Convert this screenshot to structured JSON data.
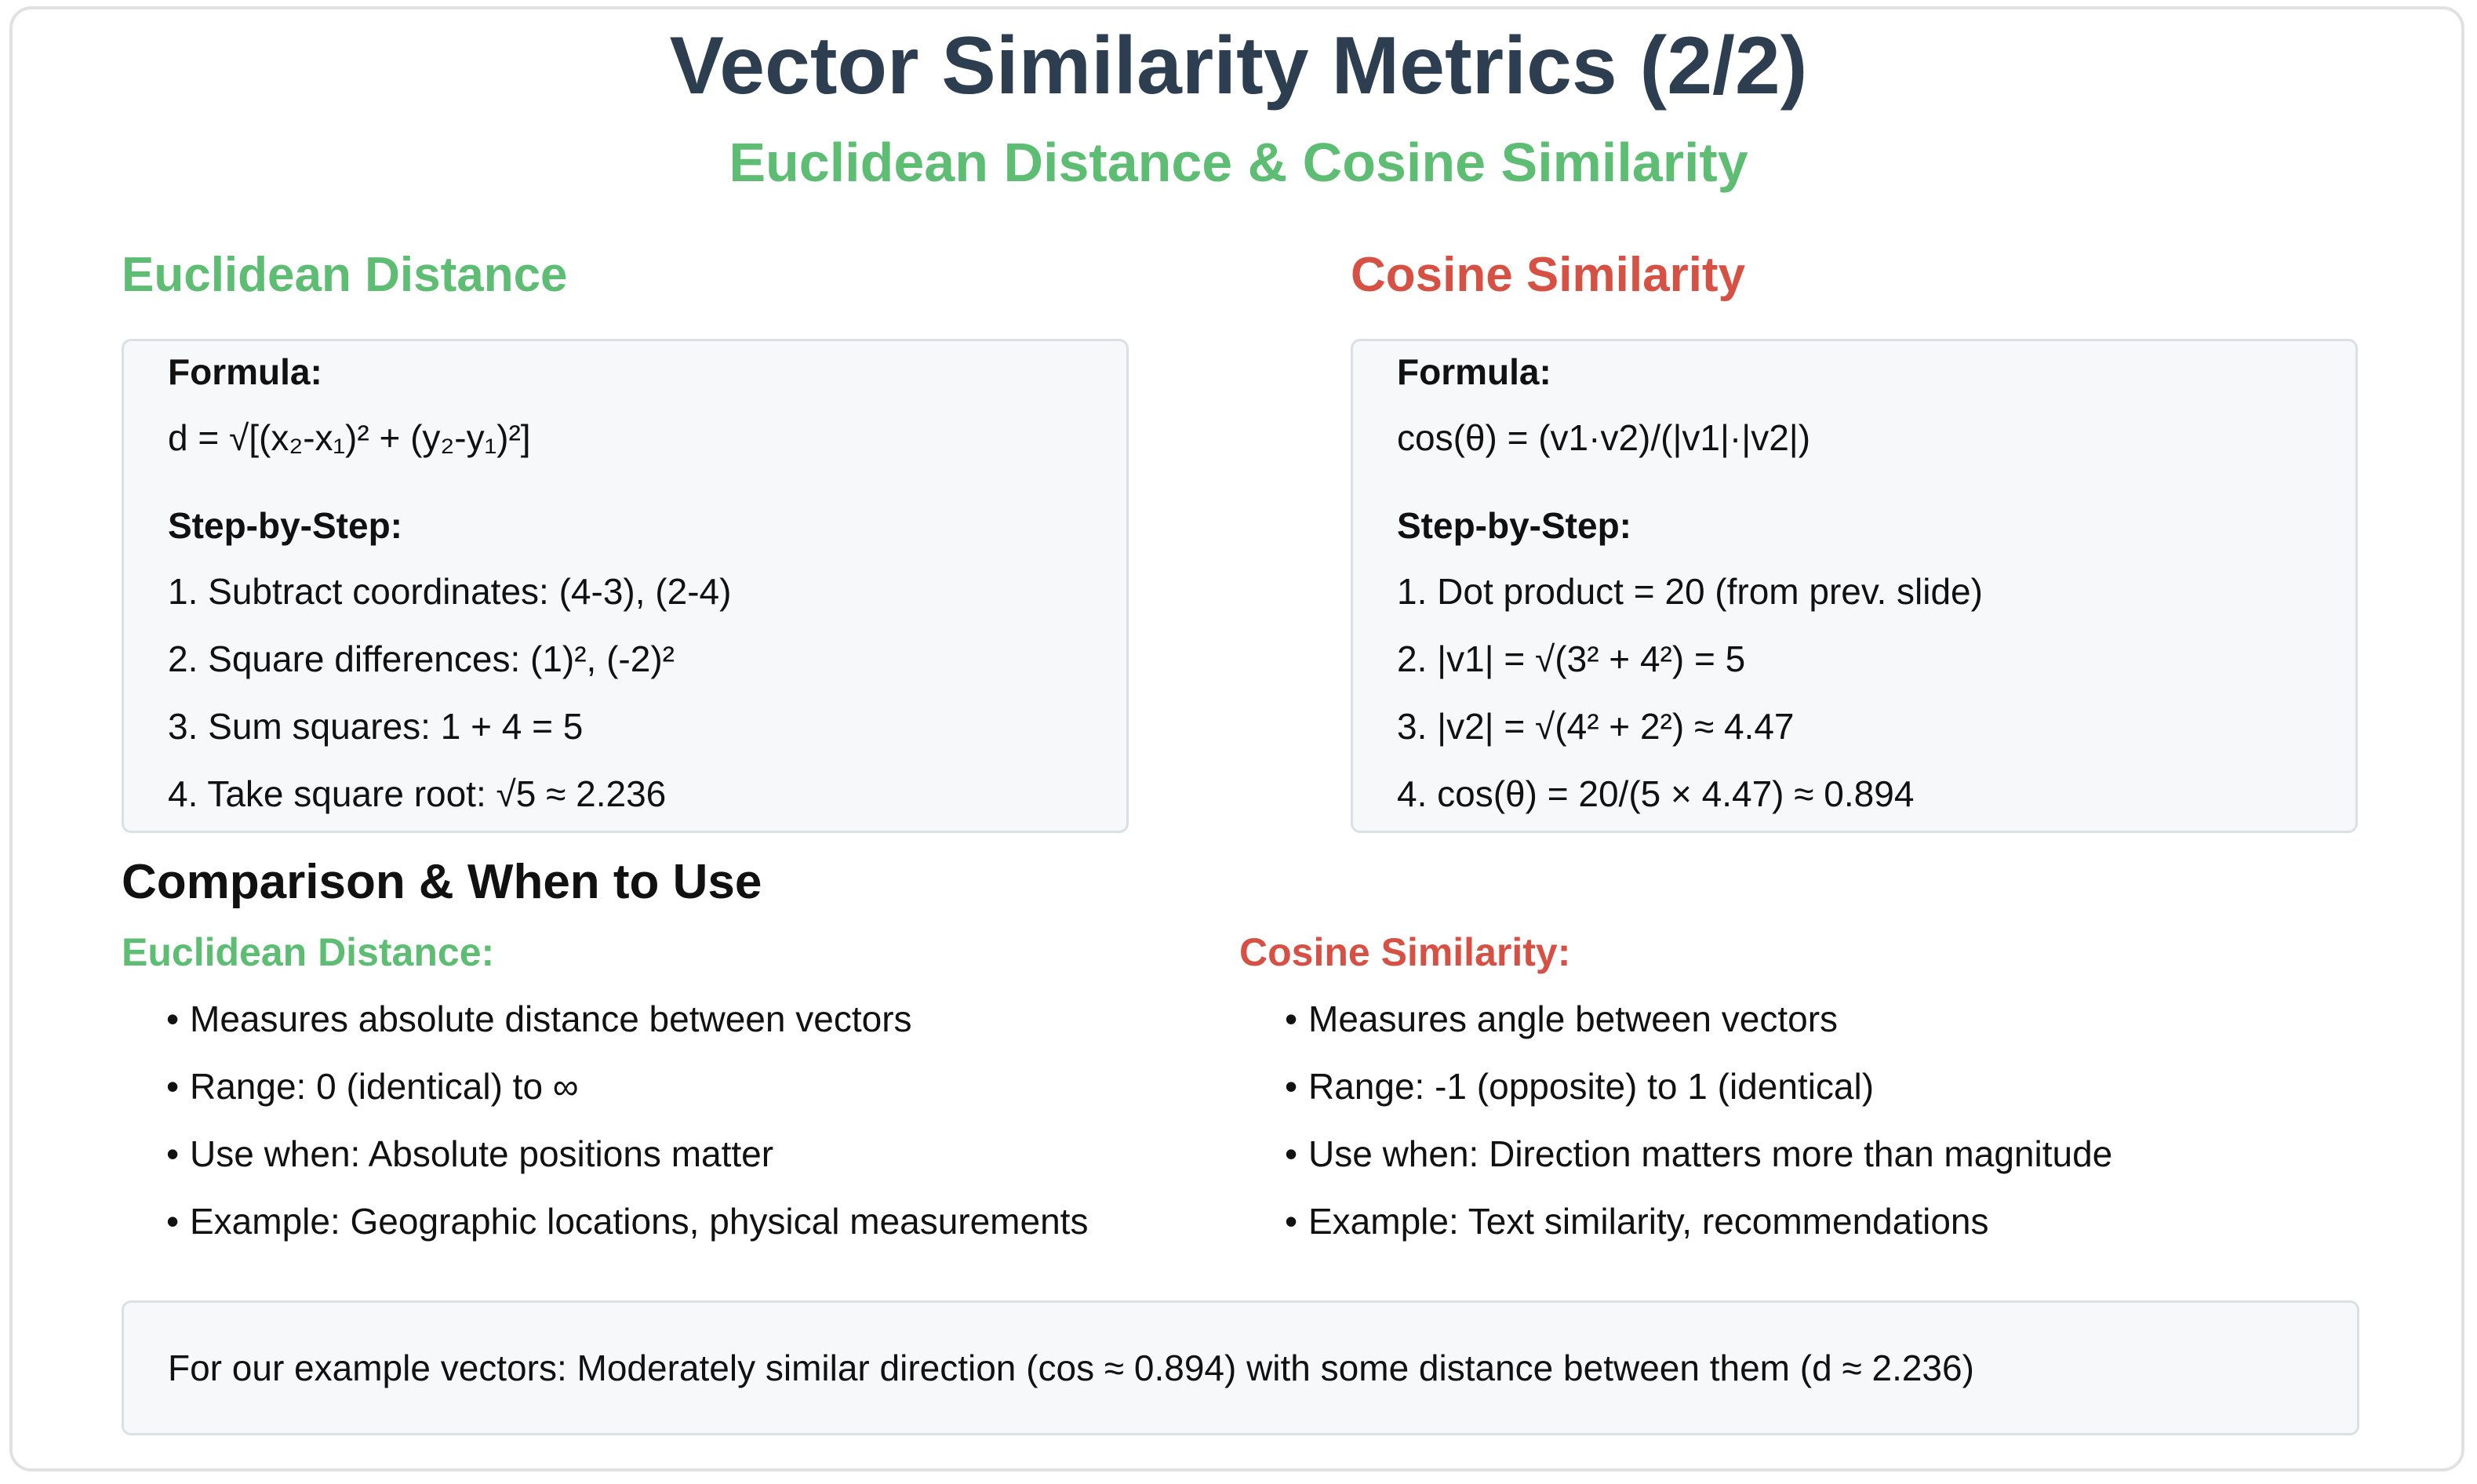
{
  "title": "Vector Similarity Metrics (2/2)",
  "subtitle": "Euclidean Distance & Cosine Similarity",
  "colors": {
    "title": "#2c3e50",
    "euclidean": "#5cbd73",
    "cosine": "#d65144",
    "box_bg": "#f7f8fa"
  },
  "euclidean": {
    "heading": "Euclidean Distance",
    "formula_label": "Formula:",
    "formula": "d = √[(x₂-x₁)² + (y₂-y₁)²]",
    "steps_label": "Step-by-Step:",
    "steps": [
      "1. Subtract coordinates: (4-3), (2-4)",
      "2. Square differences: (1)², (-2)²",
      "3. Sum squares: 1 + 4 = 5",
      "4. Take square root: √5 ≈ 2.236"
    ]
  },
  "cosine": {
    "heading": "Cosine Similarity",
    "formula_label": "Formula:",
    "formula": "cos(θ) = (v1·v2)/(|v1|·|v2|)",
    "steps_label": "Step-by-Step:",
    "steps": [
      "1. Dot product = 20 (from prev. slide)",
      "2. |v1| = √(3² + 4²) = 5",
      "3. |v2| = √(4² + 2²) ≈ 4.47",
      "4. cos(θ) = 20/(5 × 4.47) ≈ 0.894"
    ]
  },
  "comparison": {
    "heading": "Comparison & When to Use",
    "euclidean": {
      "label": "Euclidean Distance:",
      "bullet": "•",
      "items": [
        "Measures absolute distance between vectors",
        "Range: 0 (identical) to ∞",
        "Use when: Absolute positions matter",
        "Example: Geographic locations, physical measurements"
      ]
    },
    "cosine": {
      "label": "Cosine Similarity:",
      "bullet": "•",
      "items": [
        "Measures angle between vectors",
        "Range: -1 (opposite) to 1 (identical)",
        "Use when: Direction matters more than magnitude",
        "Example: Text similarity, recommendations"
      ]
    }
  },
  "summary": "For our example vectors: Moderately similar direction (cos ≈ 0.894) with some distance between them (d ≈ 2.236)"
}
